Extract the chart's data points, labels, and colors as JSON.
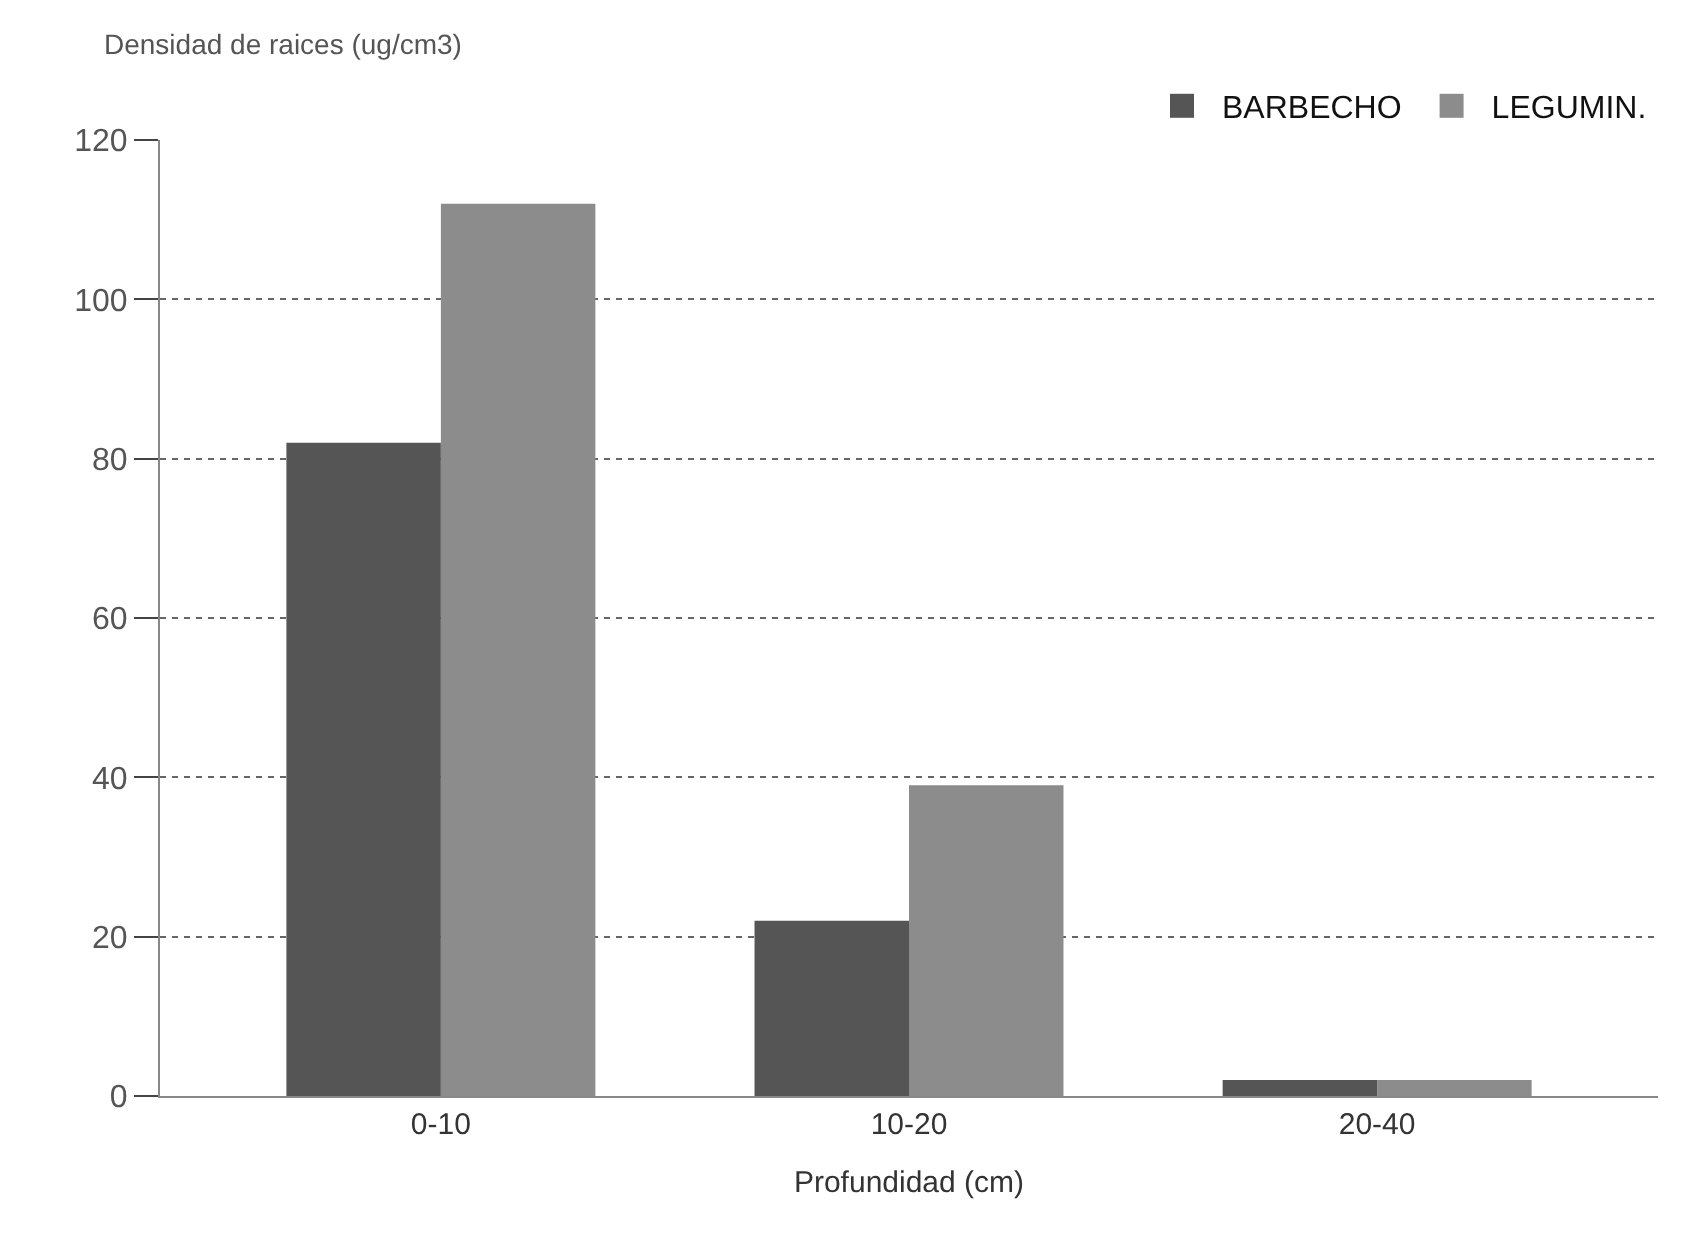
{
  "chart_data": {
    "type": "bar",
    "ylabel": "Densidad de raices (ug/cm3)",
    "xlabel": "Profundidad (cm)",
    "categories": [
      "0-10",
      "10-20",
      "20-40"
    ],
    "series": [
      {
        "name": "BARBECHO",
        "color": "#555555",
        "values": [
          82,
          22,
          2
        ]
      },
      {
        "name": "LEGUMIN.",
        "color": "#8c8c8c",
        "values": [
          112,
          39,
          2
        ]
      }
    ],
    "ylim": [
      0,
      120
    ],
    "yticks": [
      0,
      20,
      40,
      60,
      80,
      100,
      120
    ],
    "grid": "y",
    "legend": "top right"
  }
}
